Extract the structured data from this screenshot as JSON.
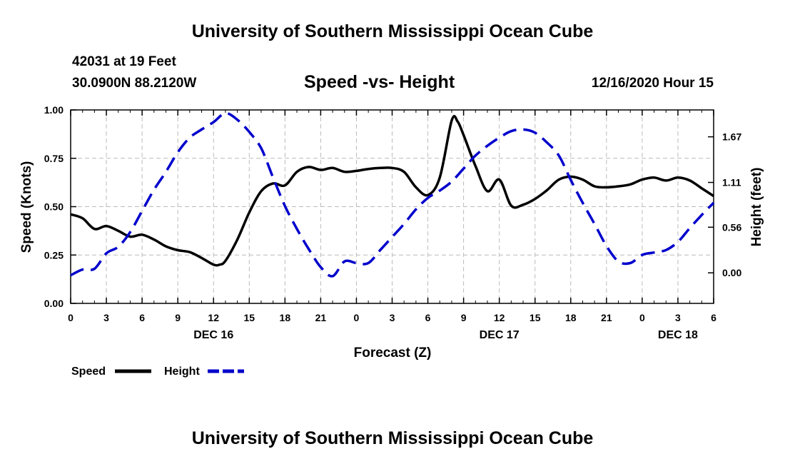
{
  "header": {
    "title": "University of Southern Mississippi Ocean Cube",
    "station_line": "42031 at 19 Feet",
    "location_line": "30.0900N 88.2120W",
    "subtitle": "Speed -vs- Height",
    "timestamp": "12/16/2020 Hour 15"
  },
  "footer": {
    "title": "University of Southern Mississippi Ocean Cube"
  },
  "colors": {
    "speed": "#000000",
    "height": "#0000cc",
    "grid": "#bbbbbb"
  },
  "chart_data": {
    "type": "line",
    "title": "Speed -vs- Height",
    "xlabel": "Forecast (Z)",
    "ylabel": "Speed (Knots)",
    "y2label": "Height (feet)",
    "xlim": [
      0,
      54
    ],
    "ylim": [
      0,
      1.0
    ],
    "y2lim": [
      -0.375,
      2.0
    ],
    "x_ticks": [
      0,
      3,
      6,
      9,
      12,
      15,
      18,
      21,
      24,
      27,
      30,
      33,
      36,
      39,
      42,
      45,
      48,
      51,
      54
    ],
    "x_tick_labels": [
      "0",
      "3",
      "6",
      "9",
      "12",
      "15",
      "18",
      "21",
      "0",
      "3",
      "6",
      "9",
      "12",
      "15",
      "18",
      "21",
      "0",
      "3",
      "6"
    ],
    "date_labels": [
      {
        "x": 12,
        "label": "DEC 16"
      },
      {
        "x": 36,
        "label": "DEC 17"
      },
      {
        "x": 51,
        "label": "DEC 18"
      }
    ],
    "y_ticks": [
      0,
      0.25,
      0.5,
      0.75,
      1.0
    ],
    "y_tick_labels": [
      "0.00",
      "0.25",
      "0.50",
      "0.75",
      "1.00"
    ],
    "y2_ticks": [
      0,
      0.56,
      1.11,
      1.67
    ],
    "y2_tick_labels": [
      "0.00",
      "0.56",
      "1.11",
      "1.67"
    ],
    "grid": true,
    "legend": [
      {
        "name": "Speed",
        "style": "solid"
      },
      {
        "name": "Height",
        "style": "dashed"
      }
    ],
    "series": [
      {
        "name": "Speed",
        "axis": "left",
        "style": "solid",
        "x": [
          0,
          1,
          2,
          3,
          4,
          5,
          6,
          7,
          8,
          9,
          10,
          11,
          12,
          12.5,
          13,
          14,
          15,
          16,
          17,
          18,
          19,
          20,
          21,
          22,
          23,
          24,
          25,
          26,
          27,
          28,
          29,
          30,
          31,
          32,
          32.5,
          33,
          34,
          35,
          36,
          37,
          38,
          39,
          40,
          41,
          42,
          43,
          44,
          45,
          46,
          47,
          48,
          49,
          50,
          51,
          52,
          53,
          54
        ],
        "values": [
          0.46,
          0.44,
          0.385,
          0.4,
          0.375,
          0.345,
          0.355,
          0.33,
          0.295,
          0.275,
          0.265,
          0.235,
          0.2,
          0.2,
          0.22,
          0.33,
          0.47,
          0.58,
          0.62,
          0.61,
          0.68,
          0.705,
          0.69,
          0.7,
          0.68,
          0.685,
          0.695,
          0.7,
          0.7,
          0.68,
          0.6,
          0.56,
          0.65,
          0.945,
          0.94,
          0.87,
          0.71,
          0.58,
          0.64,
          0.505,
          0.51,
          0.54,
          0.585,
          0.64,
          0.655,
          0.64,
          0.605,
          0.6,
          0.605,
          0.615,
          0.64,
          0.65,
          0.635,
          0.65,
          0.635,
          0.595,
          0.555
        ]
      },
      {
        "name": "Height",
        "axis": "right",
        "style": "dashed",
        "x": [
          0,
          1,
          2,
          3,
          4,
          5,
          6,
          7,
          8,
          9,
          10,
          11,
          12,
          13,
          14,
          15,
          16,
          17,
          18,
          19,
          20,
          21,
          22,
          23,
          24,
          25,
          26,
          27,
          28,
          29,
          30,
          31,
          32,
          33,
          34,
          35,
          36,
          37,
          38,
          39,
          40,
          41,
          42,
          43,
          44,
          45,
          46,
          47,
          48,
          49,
          50,
          51,
          52,
          53,
          54
        ],
        "values": [
          -0.03,
          0.04,
          0.05,
          0.24,
          0.32,
          0.5,
          0.76,
          1.02,
          1.24,
          1.48,
          1.66,
          1.76,
          1.85,
          1.96,
          1.88,
          1.73,
          1.53,
          1.17,
          0.82,
          0.54,
          0.29,
          0.07,
          -0.04,
          0.14,
          0.12,
          0.12,
          0.28,
          0.44,
          0.6,
          0.78,
          0.92,
          1.01,
          1.12,
          1.28,
          1.44,
          1.56,
          1.66,
          1.74,
          1.76,
          1.72,
          1.6,
          1.44,
          1.14,
          0.86,
          0.6,
          0.33,
          0.14,
          0.12,
          0.22,
          0.25,
          0.28,
          0.38,
          0.55,
          0.71,
          0.86
        ]
      }
    ]
  }
}
